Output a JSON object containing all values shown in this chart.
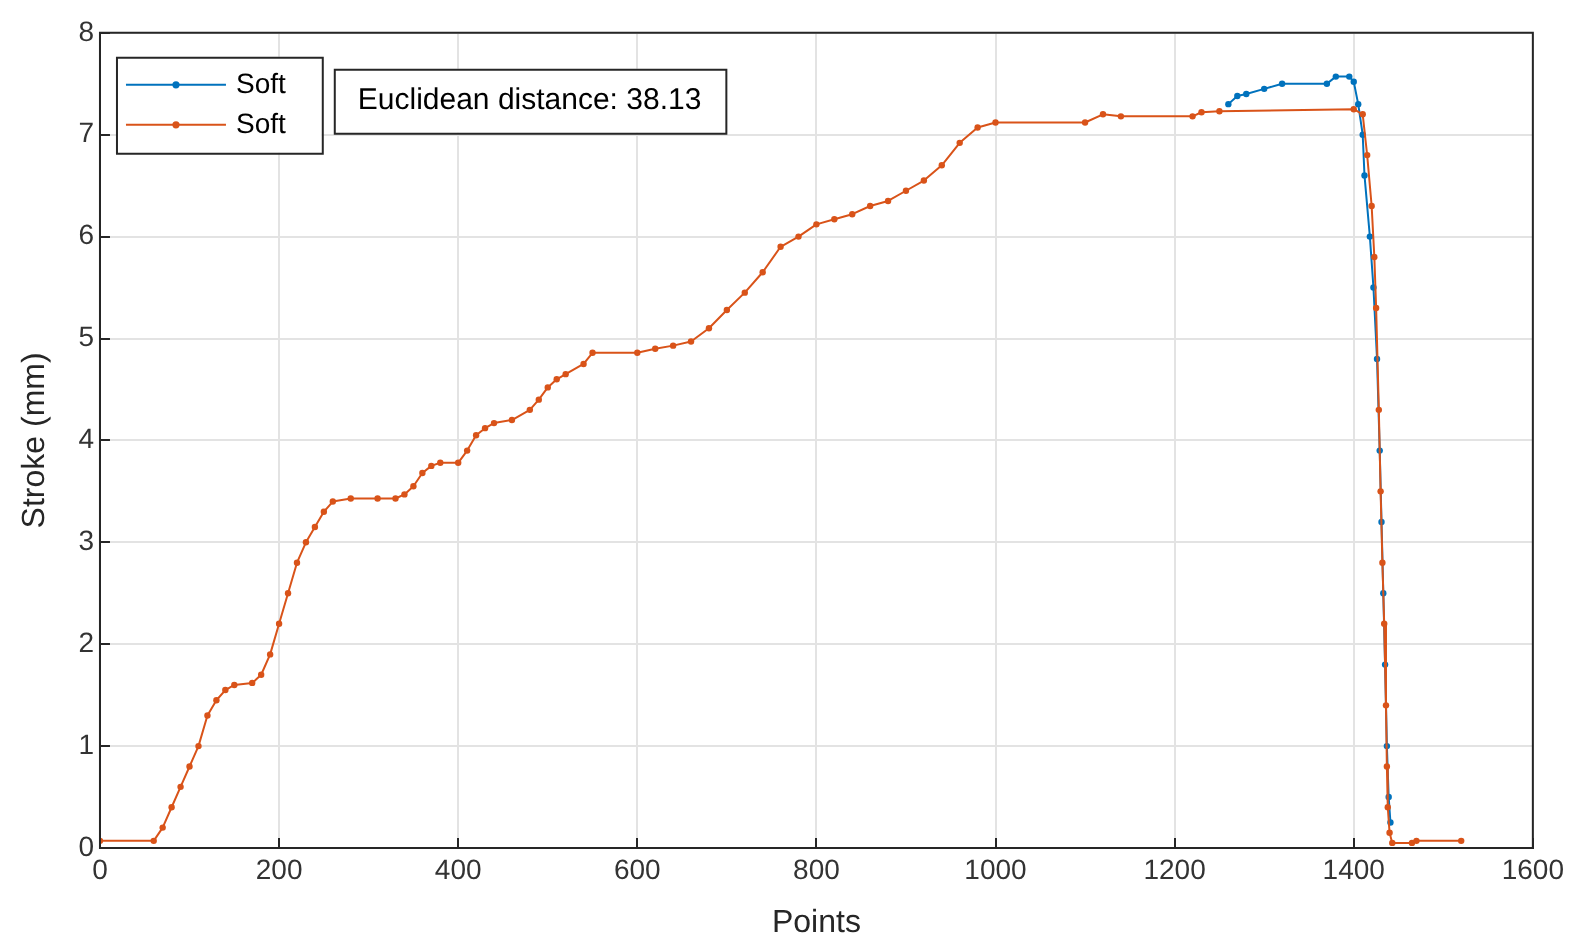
{
  "chart_data": {
    "type": "line",
    "xlabel": "Points",
    "ylabel": "Stroke (mm)",
    "annotations": [
      "Euclidean distance: 38.13"
    ],
    "xlim": [
      0,
      1600
    ],
    "xticks": [
      0,
      200,
      400,
      600,
      800,
      1000,
      1200,
      1400,
      1600
    ],
    "ylim": [
      0,
      8
    ],
    "yticks": [
      0,
      1,
      2,
      3,
      4,
      5,
      6,
      7,
      8
    ],
    "grid": true,
    "legend": "top left",
    "marker": "circle",
    "line_style": "solid",
    "series": [
      {
        "name": "Soft",
        "color": "#0072bd",
        "x": [
          1260,
          1270,
          1280,
          1300,
          1320,
          1370,
          1380,
          1395,
          1400,
          1405,
          1410,
          1412,
          1418,
          1422,
          1426,
          1429,
          1431,
          1433,
          1435,
          1437,
          1439,
          1441
        ],
        "values": [
          7.3,
          7.38,
          7.4,
          7.45,
          7.5,
          7.5,
          7.57,
          7.57,
          7.52,
          7.3,
          7.0,
          6.6,
          6.0,
          5.5,
          4.8,
          3.9,
          3.2,
          2.5,
          1.8,
          1.0,
          0.5,
          0.25
        ]
      },
      {
        "name": "Soft",
        "color": "#d95319",
        "x": [
          0,
          60,
          70,
          80,
          90,
          100,
          110,
          120,
          130,
          140,
          150,
          170,
          180,
          190,
          200,
          210,
          220,
          230,
          240,
          250,
          260,
          280,
          310,
          330,
          340,
          350,
          360,
          370,
          380,
          400,
          410,
          420,
          430,
          440,
          460,
          480,
          490,
          500,
          510,
          520,
          540,
          550,
          600,
          620,
          640,
          660,
          680,
          700,
          720,
          740,
          760,
          780,
          800,
          820,
          840,
          860,
          880,
          900,
          920,
          940,
          960,
          980,
          1000,
          1100,
          1120,
          1140,
          1220,
          1230,
          1250,
          1400,
          1410,
          1415,
          1420,
          1423,
          1425,
          1428,
          1430,
          1432,
          1434,
          1436,
          1437,
          1438,
          1440,
          1443,
          1465,
          1470,
          1520
        ],
        "values": [
          0.07,
          0.07,
          0.2,
          0.4,
          0.6,
          0.8,
          1.0,
          1.3,
          1.45,
          1.55,
          1.6,
          1.62,
          1.7,
          1.9,
          2.2,
          2.5,
          2.8,
          3.0,
          3.15,
          3.3,
          3.4,
          3.43,
          3.43,
          3.43,
          3.47,
          3.55,
          3.68,
          3.75,
          3.78,
          3.78,
          3.9,
          4.05,
          4.12,
          4.17,
          4.2,
          4.3,
          4.4,
          4.52,
          4.6,
          4.65,
          4.75,
          4.86,
          4.86,
          4.9,
          4.93,
          4.97,
          5.1,
          5.28,
          5.45,
          5.65,
          5.9,
          6.0,
          6.12,
          6.17,
          6.22,
          6.3,
          6.35,
          6.45,
          6.55,
          6.7,
          6.92,
          7.07,
          7.12,
          7.12,
          7.2,
          7.18,
          7.18,
          7.22,
          7.23,
          7.25,
          7.2,
          6.8,
          6.3,
          5.8,
          5.3,
          4.3,
          3.5,
          2.8,
          2.2,
          1.4,
          0.8,
          0.4,
          0.15,
          0.05,
          0.05,
          0.07,
          0.07
        ]
      }
    ]
  }
}
